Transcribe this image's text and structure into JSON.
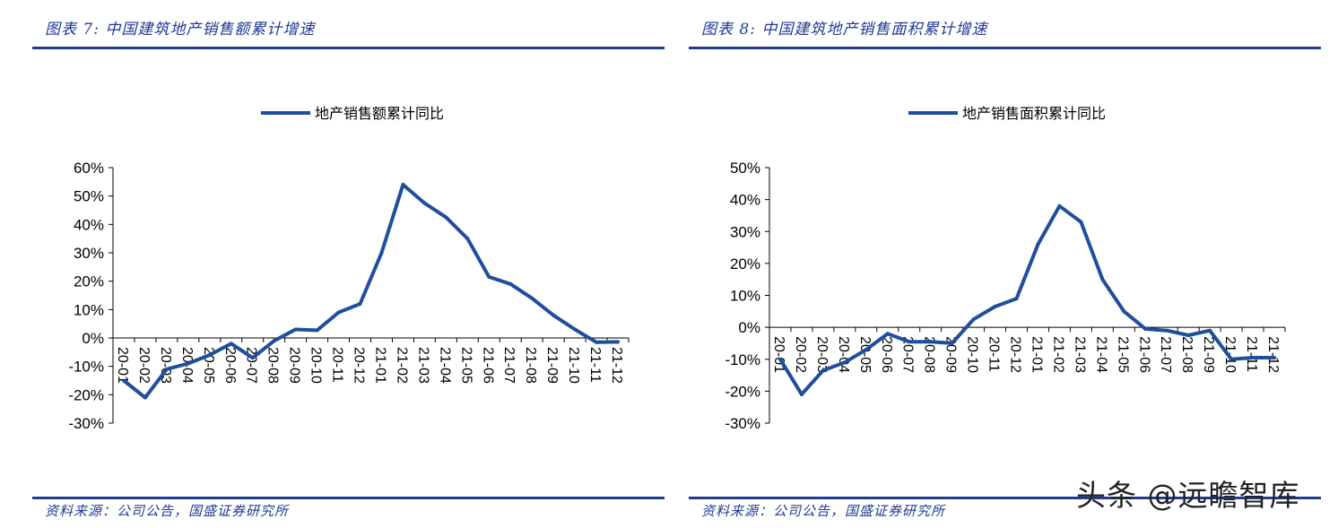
{
  "panels": [
    {
      "title": "图表 7:  中国建筑地产销售额累计增速",
      "source": "资料来源：公司公告，国盛证券研究所"
    },
    {
      "title": "图表 8:  中国建筑地产销售面积累计增速",
      "source": "资料来源：公司公告，国盛证券研究所"
    }
  ],
  "watermark": "头条 @远瞻智库",
  "colors": {
    "line": "#1f4e9c",
    "accent": "#1f3a93"
  },
  "chart_data": [
    {
      "type": "line",
      "title": "",
      "legend": "地产销售额累计同比",
      "legend_position": "top-center",
      "grid": false,
      "x": [
        "20-01",
        "20-02",
        "20-03",
        "20-04",
        "20-05",
        "20-06",
        "20-07",
        "20-08",
        "20-09",
        "20-10",
        "20-11",
        "20-12",
        "21-01",
        "21-02",
        "21-03",
        "21-04",
        "21-05",
        "21-06",
        "21-07",
        "21-08",
        "21-09",
        "21-10",
        "21-11",
        "21-12"
      ],
      "y": [
        -15,
        -21,
        -11,
        -9,
        -6,
        -2,
        -7,
        -1,
        3,
        2.7,
        9,
        12,
        30,
        54,
        47.5,
        42.5,
        35,
        21.5,
        19,
        14,
        8,
        3,
        -1.5,
        -1.4
      ],
      "yticks": [
        "60%",
        "50%",
        "40%",
        "30%",
        "20%",
        "10%",
        "0%",
        "-10%",
        "-20%",
        "-30%"
      ],
      "ylim": [
        -30,
        60
      ]
    },
    {
      "type": "line",
      "title": "",
      "legend": "地产销售面积累计同比",
      "legend_position": "top-center",
      "grid": false,
      "x": [
        "20-01",
        "20-02",
        "20-03",
        "20-04",
        "20-05",
        "20-06",
        "20-07",
        "20-08",
        "20-09",
        "20-10",
        "20-11",
        "20-12",
        "21-01",
        "21-02",
        "21-03",
        "21-04",
        "21-05",
        "21-06",
        "21-07",
        "21-08",
        "21-09",
        "21-10",
        "21-11",
        "21-12"
      ],
      "y": [
        -10,
        -21,
        -13.5,
        -11,
        -7,
        -2,
        -4.5,
        -4.5,
        -5,
        2.5,
        6.5,
        9,
        26,
        38,
        33,
        15,
        5,
        -0.5,
        -1,
        -2.5,
        -1,
        -10,
        -9.5,
        -9.5
      ],
      "yticks": [
        "50%",
        "40%",
        "30%",
        "20%",
        "10%",
        "0%",
        "-10%",
        "-20%",
        "-30%"
      ],
      "ylim": [
        -30,
        50
      ]
    }
  ]
}
